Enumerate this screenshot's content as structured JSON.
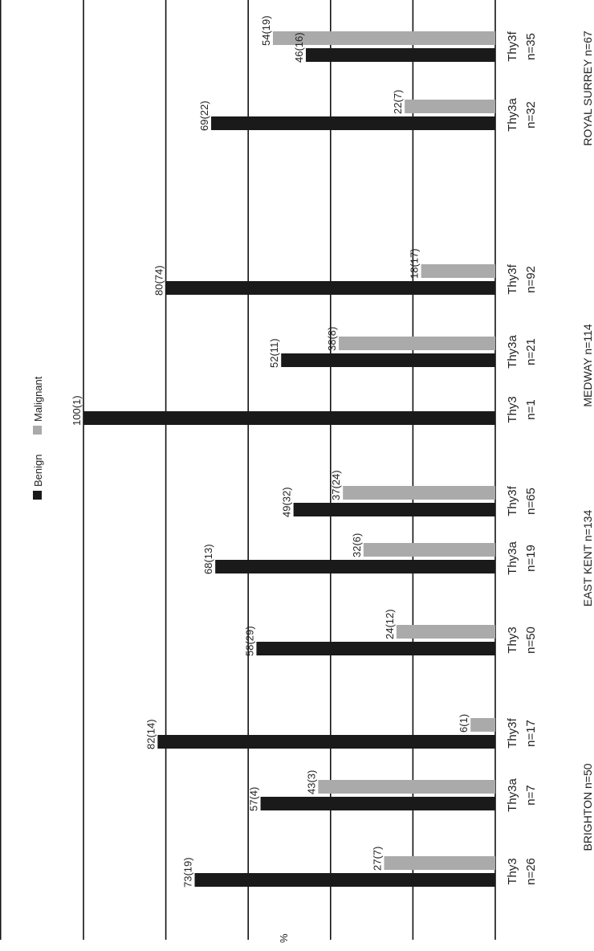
{
  "chart_data": {
    "type": "bar",
    "orientation": "rotated-90",
    "ylabel": "%",
    "ylim": [
      0,
      100
    ],
    "yticks": [
      0,
      20,
      40,
      60,
      80,
      100
    ],
    "grid": true,
    "legend_position": "top-center",
    "colors": {
      "Benign": "#1a1a1a",
      "Malignant": "#aaaaaa"
    },
    "series": [
      {
        "name": "Benign",
        "key": "benign"
      },
      {
        "name": "Malignant",
        "key": "malignant"
      }
    ],
    "groups": [
      {
        "label": "BRIGHTON n=50",
        "categories": [
          {
            "name": "Thy3",
            "n": "n=26",
            "benign": {
              "value": 73,
              "label": "73(19)"
            },
            "malignant": {
              "value": 27,
              "label": "27(7)"
            }
          },
          {
            "name": "Thy3a",
            "n": "n=7",
            "benign": {
              "value": 57,
              "label": "57(4)"
            },
            "malignant": {
              "value": 43,
              "label": "43(3)"
            }
          },
          {
            "name": "Thy3f",
            "n": "n=17",
            "benign": {
              "value": 82,
              "label": "82(14)"
            },
            "malignant": {
              "value": 6,
              "label": "6(1)"
            }
          }
        ]
      },
      {
        "label": "EAST KENT n=134",
        "categories": [
          {
            "name": "Thy3",
            "n": "n=50",
            "benign": {
              "value": 58,
              "label": "58(29)"
            },
            "malignant": {
              "value": 24,
              "label": "24(12)"
            }
          },
          {
            "name": "Thy3a",
            "n": "n=19",
            "benign": {
              "value": 68,
              "label": "68(13)"
            },
            "malignant": {
              "value": 32,
              "label": "32(6)"
            }
          },
          {
            "name": "Thy3f",
            "n": "n=65",
            "benign": {
              "value": 49,
              "label": "49(32)"
            },
            "malignant": {
              "value": 37,
              "label": "37(24)"
            }
          }
        ]
      },
      {
        "label": "MEDWAY n=114",
        "categories": [
          {
            "name": "Thy3",
            "n": "n=1",
            "benign": {
              "value": 100,
              "label": "100(1)"
            },
            "malignant": null
          },
          {
            "name": "Thy3a",
            "n": "n=21",
            "benign": {
              "value": 52,
              "label": "52(11)"
            },
            "malignant": {
              "value": 38,
              "label": "38(8)"
            }
          },
          {
            "name": "Thy3f",
            "n": "n=92",
            "benign": {
              "value": 80,
              "label": "80(74)"
            },
            "malignant": {
              "value": 18,
              "label": "18(17)"
            }
          }
        ]
      },
      {
        "label": "ROYAL SURREY n=67",
        "categories": [
          {
            "name": "Thy3a",
            "n": "n=32",
            "benign": {
              "value": 69,
              "label": "69(22)"
            },
            "malignant": {
              "value": 22,
              "label": "22(7)"
            }
          },
          {
            "name": "Thy3f",
            "n": "n=35",
            "benign": {
              "value": 46,
              "label": "46(16)"
            },
            "malignant": {
              "value": 54,
              "label": "54(19)"
            }
          }
        ]
      }
    ]
  }
}
